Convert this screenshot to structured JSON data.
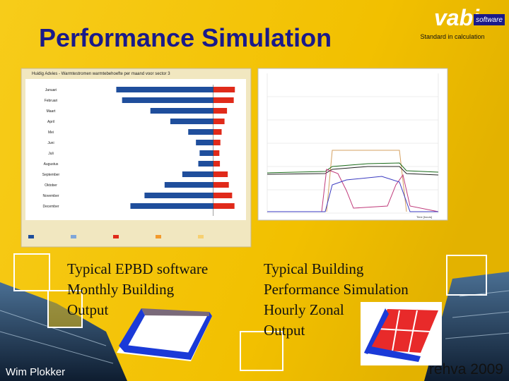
{
  "header": {
    "title": "Performance Simulation",
    "logo": "vabi",
    "logo_sub": "software",
    "tagline": "Standard in calculation"
  },
  "left_chart": {
    "title": "Huidig Advies - Warmtestromen warmtebehoefte per maand voor sector 3",
    "categories": [
      "Januari",
      "Februari",
      "Maart",
      "April",
      "Mei",
      "Juni",
      "Juli",
      "Augustus",
      "September",
      "Oktober",
      "November",
      "December"
    ],
    "xlim": [
      -29600,
      5000
    ],
    "series": [
      {
        "color": "#1f4e9c",
        "values": [
          -20655,
          -19417,
          -13398,
          -9156,
          -5345,
          -3701,
          -2918,
          -3201,
          -6603,
          -10370,
          -14645,
          -17648
        ]
      },
      {
        "color": "#e02a1a",
        "values": [
          4585,
          4345,
          2910,
          2379,
          1765,
          1500,
          1289,
          1400,
          3068,
          3300,
          4000,
          4500
        ]
      }
    ]
  },
  "right_chart": {
    "x_label": "Time [hours]"
  },
  "captions": [
    {
      "lines": [
        "Typical EPBD software",
        "Monthly  Building",
        "Output"
      ]
    },
    {
      "lines": [
        "Typical Building",
        "Performance Simulation",
        "Hourly Zonal",
        "Output"
      ]
    }
  ],
  "footer": {
    "author": "Wim Plokker",
    "event": "rehva 2009"
  }
}
